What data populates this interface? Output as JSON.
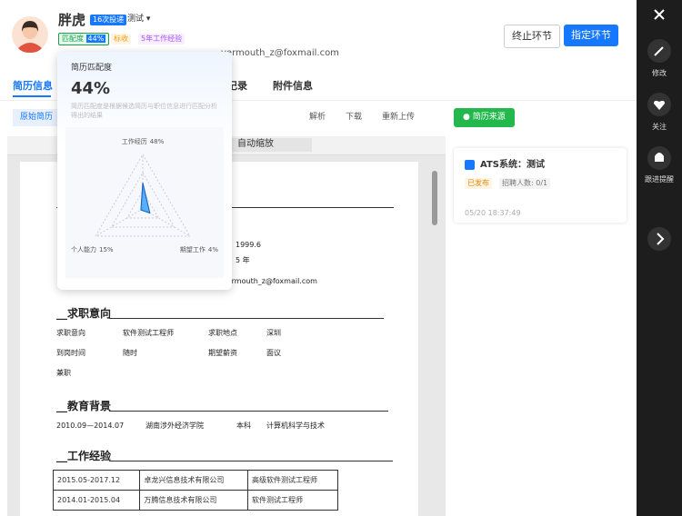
{
  "header": {
    "name": "胖虎",
    "apply_count": "16次投递",
    "job": "测试",
    "match_label": "匹配度",
    "match_value": "44%",
    "status": "标收",
    "experience": "5年工作经验",
    "email": "vermouth_z@foxmail.com"
  },
  "actions": {
    "terminate": "终止环节",
    "assign": "指定环节"
  },
  "tabs": [
    "简历信息",
    "操作记录",
    "附件信息"
  ],
  "toolbar": {
    "original": "原始简历",
    "parse": "解析",
    "download": "下载",
    "reupload": "重新上传",
    "zoom": "自动缩放"
  },
  "resume": {
    "birth": "1999.6",
    "years": "5 年",
    "email": "vermouth_z@foxmail.com",
    "intent_title": "求职意向",
    "intent_rows": [
      [
        "求职意向",
        "软件测试工程师",
        "求职地点",
        "深圳"
      ],
      [
        "到岗时间",
        "随时",
        "期望薪资",
        "面议"
      ],
      [
        "兼职"
      ]
    ],
    "education_title": "教育背景",
    "education_row": [
      "2010.09—2014.07",
      "湖南涉外经济学院",
      "本科",
      "计算机科学与技术"
    ],
    "work_title": "工作经验",
    "work_rows": [
      [
        "2015.05-2017.12",
        "卓龙兴信息技术有限公司",
        "高级软件测试工程师"
      ],
      [
        "2014.01-2015.04",
        "万腾信息技术有限公司",
        "软件测试工程师"
      ]
    ]
  },
  "source": {
    "button": "简历来源",
    "system": "ATS系统：测试",
    "status": "已发布",
    "headcount": "招聘人数: 0/1",
    "time": "05/20 18:37:49"
  },
  "sidebar": [
    "修改",
    "关注",
    "跟进提醒"
  ],
  "match_popup": {
    "title": "简历匹配度",
    "score": "44%",
    "description": "简历匹配度是根据候选简历与职位信息进行匹配分析得出的结果"
  },
  "chart_data": {
    "type": "radar",
    "axes": [
      "工作经历",
      "个人能力",
      "期望工作"
    ],
    "values": [
      48,
      15,
      4
    ],
    "value_labels": [
      "48%",
      "15%",
      "4%"
    ],
    "rlim": [
      0,
      100
    ],
    "color": "#1890ff"
  }
}
